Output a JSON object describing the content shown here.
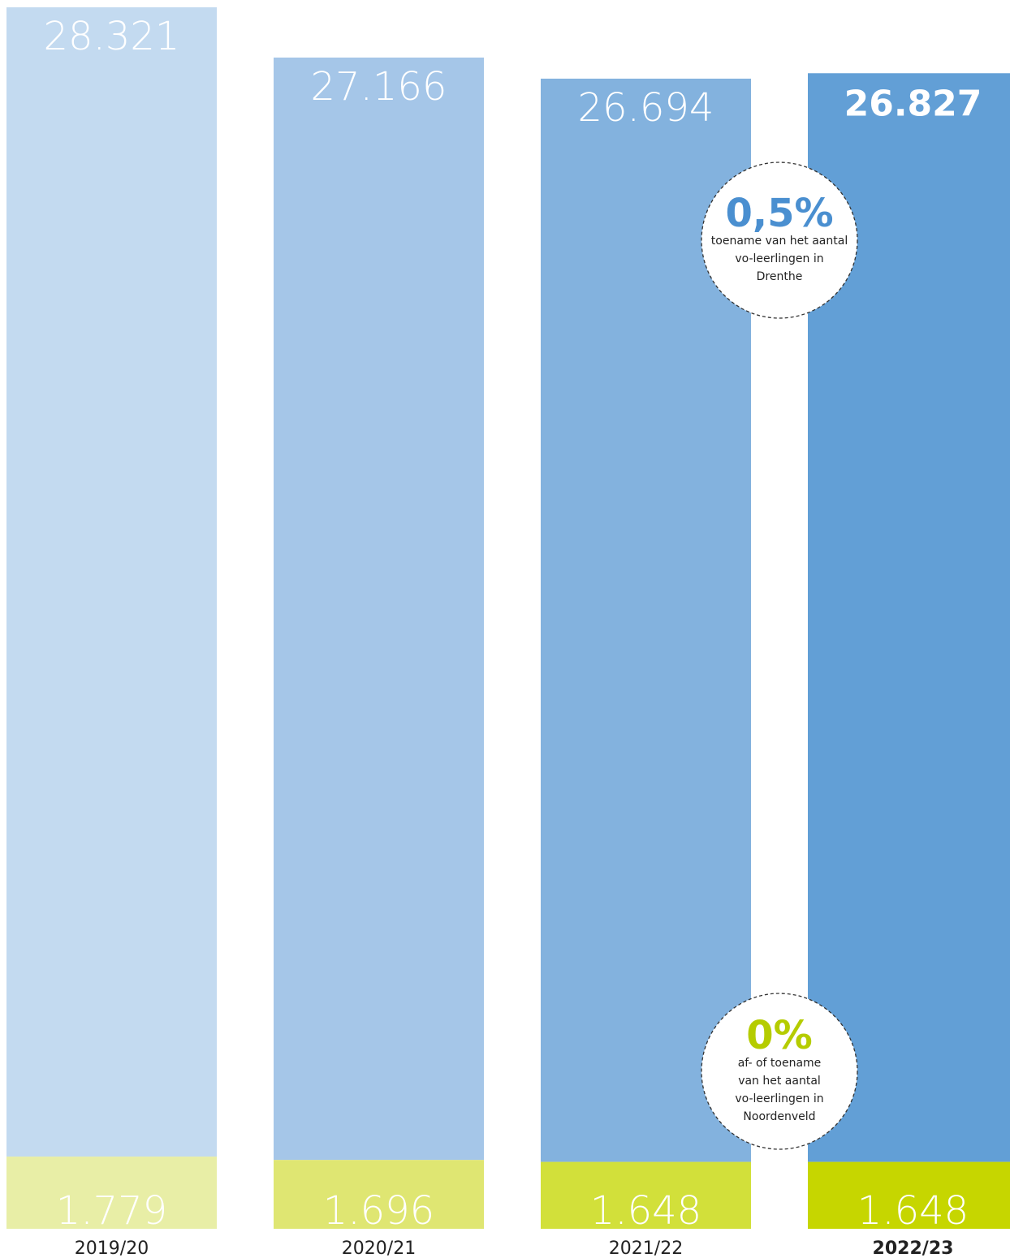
{
  "chart_data": {
    "type": "bar",
    "categories": [
      "2019/20",
      "2020/21",
      "2021/22",
      "2022/23"
    ],
    "series": [
      {
        "values": [
          1779,
          1696,
          1648,
          1648
        ],
        "labels": [
          "1.779",
          "1.696",
          "1.648",
          "1.648"
        ],
        "colors": [
          "#e8eea6",
          "#dfe672",
          "#d2e03a",
          "#c6d600"
        ]
      },
      {
        "values": [
          28321,
          27166,
          26694,
          26827
        ],
        "labels": [
          "28.321",
          "27.166",
          "26.694",
          "26.827"
        ],
        "colors": [
          "#c3daf0",
          "#a5c6e8",
          "#83b2de",
          "#629fd6"
        ]
      }
    ],
    "highlight_index": 3,
    "callouts": [
      {
        "value": "0,5%",
        "lines": [
          "toename van het aantal",
          "vo-leerlingen in",
          "Drenthe"
        ],
        "color": "#4a8fd0"
      },
      {
        "value": "0%",
        "lines": [
          "af- of toename",
          "van het aantal",
          "vo-leerlingen in",
          "Noordenveld"
        ],
        "color": "#b5cc00"
      }
    ]
  }
}
